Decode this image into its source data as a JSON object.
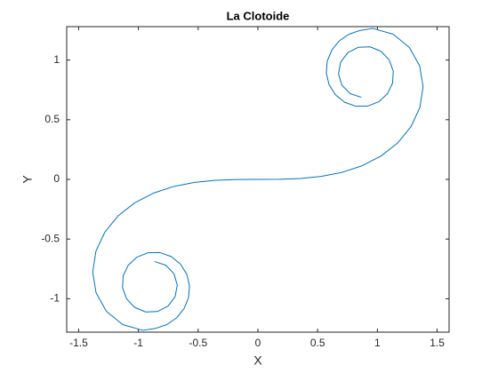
{
  "chart_data": {
    "type": "line",
    "title": "La Clotoide",
    "xlabel": "X",
    "ylabel": "Y",
    "xlim": [
      -1.6,
      1.6
    ],
    "ylim": [
      -1.28,
      1.28
    ],
    "xticks": [
      -1.5,
      -1,
      -0.5,
      0,
      0.5,
      1,
      1.5
    ],
    "yticks": [
      -1,
      -0.5,
      0,
      0.5,
      1
    ],
    "grid": false,
    "series": [
      {
        "color": "#0072bd",
        "x": [
          -0.8651,
          -0.7709,
          -0.7024,
          -0.6745,
          -0.6928,
          -0.7524,
          -0.8406,
          -0.9399,
          -1.0313,
          -1.0993,
          -1.133,
          -1.1273,
          -1.0844,
          -1.0112,
          -0.9185,
          -0.8191,
          -0.7253,
          -0.6481,
          -0.5954,
          -0.5724,
          -0.5802,
          -0.6175,
          -0.6801,
          -0.7621,
          -0.8567,
          -0.9627,
          -1.1319,
          -1.268,
          -1.3538,
          -1.3824,
          -1.3556,
          -1.2812,
          -1.1693,
          -1.03,
          -0.8726,
          -0.7046,
          -0.5307,
          -0.3543,
          -0.1771,
          0,
          0.1771,
          0.3543,
          0.5307,
          0.7046,
          0.8726,
          1.03,
          1.1693,
          1.2812,
          1.3556,
          1.3824,
          1.3538,
          1.268,
          1.1319,
          0.9627,
          0.8567,
          0.7621,
          0.6801,
          0.6175,
          0.5802,
          0.5724,
          0.5954,
          0.6481,
          0.7253,
          0.8191,
          0.9185,
          1.0112,
          1.0844,
          1.1273,
          1.133,
          1.0993,
          1.0313,
          0.9399,
          0.8406,
          0.7524,
          0.6928,
          0.6745,
          0.7024,
          0.7709,
          0.8651
        ],
        "values": [
          -0.6881,
          -0.7189,
          -0.7903,
          -0.8854,
          -0.9827,
          -1.062,
          -1.1074,
          -1.1108,
          -1.0725,
          -1.0003,
          -0.9068,
          -0.8075,
          -0.7178,
          -0.6506,
          -0.6145,
          -0.6134,
          -0.6465,
          -0.7094,
          -0.7939,
          -0.8908,
          -0.9901,
          -1.0824,
          -1.16,
          -1.2169,
          -1.2487,
          -1.2647,
          -1.2165,
          -1.105,
          -0.9509,
          -0.7769,
          -0.6023,
          -0.4419,
          -0.305,
          -0.1959,
          -0.1147,
          -0.0592,
          -0.025,
          -0.0074,
          -0.0009,
          0,
          0.0009,
          0.0074,
          0.025,
          0.0592,
          0.1147,
          0.1959,
          0.305,
          0.4419,
          0.6023,
          0.7769,
          0.9509,
          1.105,
          1.2165,
          1.2647,
          1.2487,
          1.2169,
          1.16,
          1.0824,
          0.9901,
          0.8908,
          0.7939,
          0.7094,
          0.6465,
          0.6134,
          0.6145,
          0.6506,
          0.7178,
          0.8075,
          0.9068,
          1.0003,
          1.0725,
          1.1108,
          1.1074,
          1.062,
          0.9827,
          0.8854,
          0.7903,
          0.7189,
          0.6881
        ]
      }
    ]
  }
}
